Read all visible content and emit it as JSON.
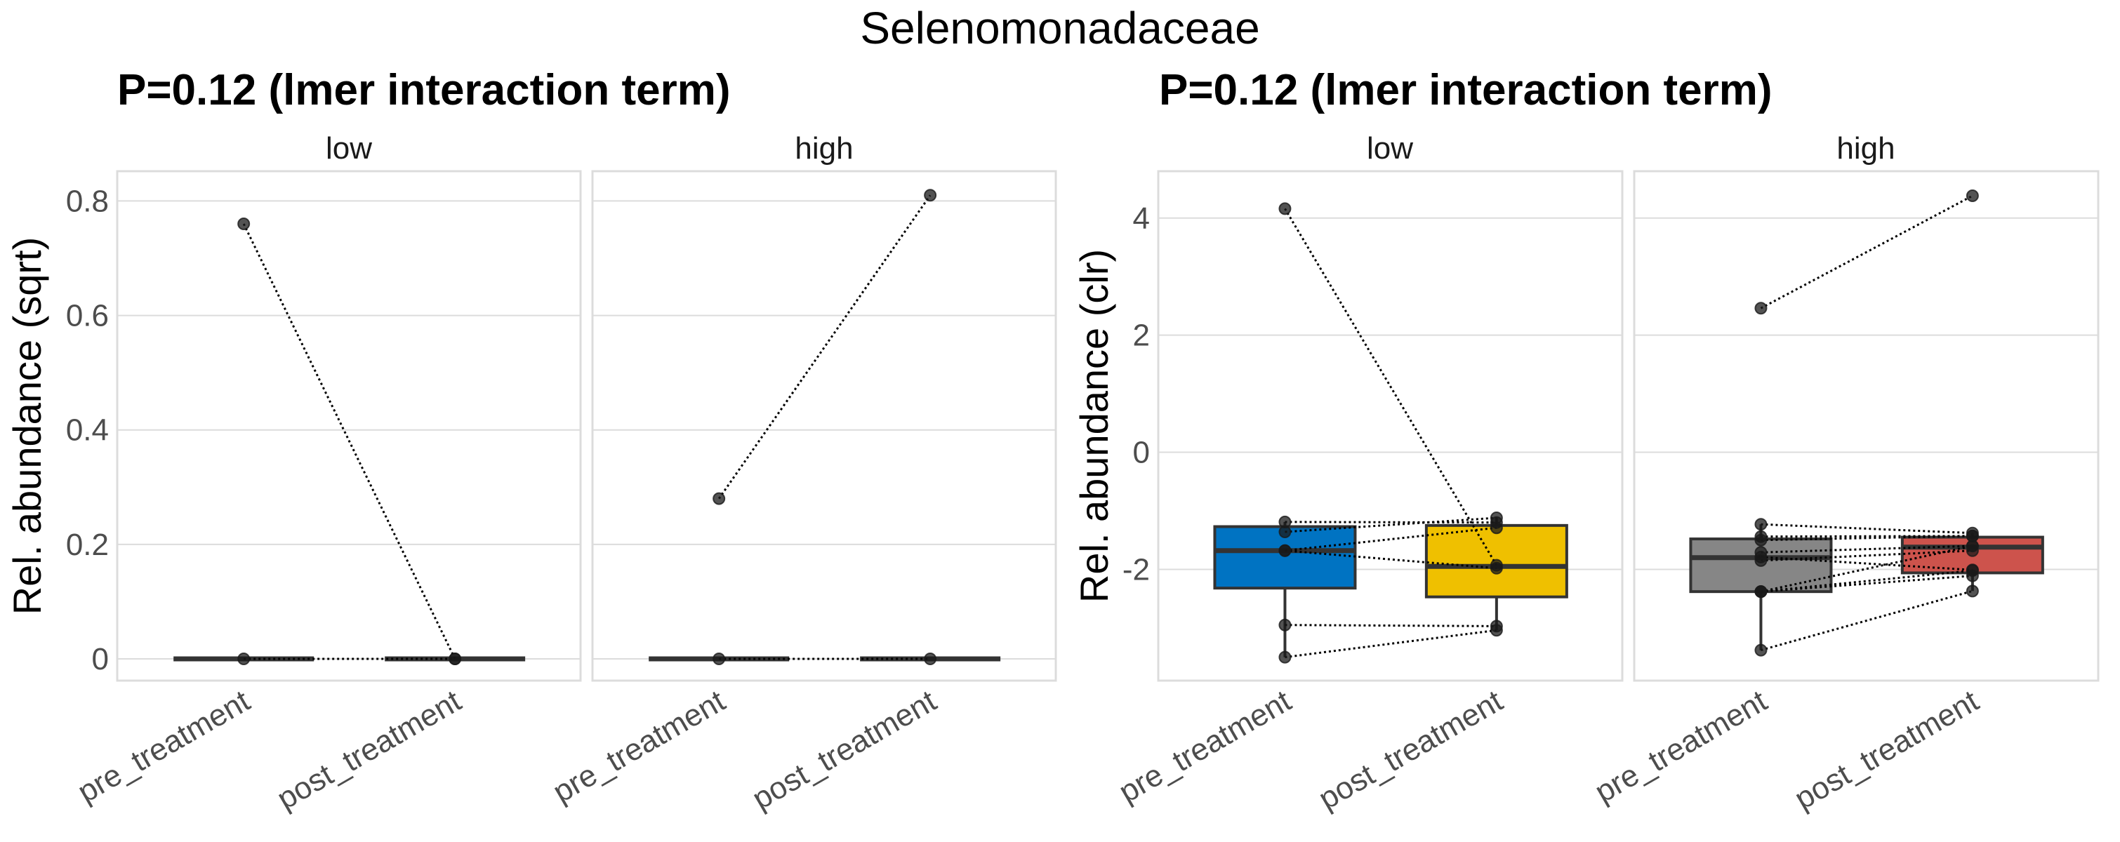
{
  "figure": {
    "title": "Selenomonadaceae"
  },
  "chart_data": [
    {
      "type": "boxplot_paired",
      "title": "P=0.12 (lmer interaction term)",
      "ylabel": "Rel. abundance (sqrt)",
      "ylim": [
        -0.038,
        0.852
      ],
      "yticks": [
        0,
        0.2,
        0.4,
        0.6,
        0.8
      ],
      "ytick_labels": [
        "0",
        "0.2",
        "0.4",
        "0.6",
        "0.8"
      ],
      "grid": true,
      "categories": [
        "pre_treatment",
        "post_treatment"
      ],
      "facets": [
        {
          "label": "low",
          "boxes": [
            {
              "category": "pre_treatment",
              "min": 0,
              "q1": 0,
              "median": 0,
              "q3": 0,
              "max": 0,
              "fill": "#3d3d3d"
            },
            {
              "category": "post_treatment",
              "min": 0,
              "q1": 0,
              "median": 0,
              "q3": 0,
              "max": 0,
              "fill": "#3d3d3d"
            }
          ],
          "pairs": [
            [
              0.76,
              0.0
            ],
            [
              0.0,
              0.0
            ]
          ]
        },
        {
          "label": "high",
          "boxes": [
            {
              "category": "pre_treatment",
              "min": 0,
              "q1": 0,
              "median": 0,
              "q3": 0,
              "max": 0,
              "fill": "#3d3d3d"
            },
            {
              "category": "post_treatment",
              "min": 0,
              "q1": 0,
              "median": 0,
              "q3": 0,
              "max": 0,
              "fill": "#3d3d3d"
            }
          ],
          "pairs": [
            [
              0.28,
              0.81
            ],
            [
              0.0,
              0.0
            ]
          ]
        }
      ]
    },
    {
      "type": "boxplot_paired",
      "title": "P=0.12 (lmer interaction term)",
      "ylabel": "Rel. abundance (clr)",
      "ylim": [
        -3.9,
        4.8
      ],
      "yticks": [
        -2,
        0,
        2,
        4
      ],
      "ytick_labels": [
        "-2",
        "0",
        "2",
        "4"
      ],
      "grid": true,
      "categories": [
        "pre_treatment",
        "post_treatment"
      ],
      "facets": [
        {
          "label": "low",
          "boxes": [
            {
              "category": "pre_treatment",
              "min": -3.5,
              "q1": -2.32,
              "median": -1.68,
              "q3": -1.27,
              "max": -1.19,
              "fill": "#0073C2"
            },
            {
              "category": "post_treatment",
              "min": -3.04,
              "q1": -2.47,
              "median": -1.95,
              "q3": -1.25,
              "max": -1.12,
              "fill": "#EFC000"
            }
          ],
          "pairs": [
            [
              4.16,
              -1.93
            ],
            [
              -1.19,
              -1.2
            ],
            [
              -1.36,
              -1.12
            ],
            [
              -1.68,
              -1.29
            ],
            [
              -1.68,
              -1.98
            ],
            [
              -2.95,
              -2.97
            ],
            [
              -3.5,
              -3.04
            ]
          ]
        },
        {
          "label": "high",
          "boxes": [
            {
              "category": "pre_treatment",
              "min": -3.38,
              "q1": -2.38,
              "median": -1.8,
              "q3": -1.48,
              "max": -1.23,
              "fill": "#868686"
            },
            {
              "category": "post_treatment",
              "min": -2.37,
              "q1": -2.06,
              "median": -1.62,
              "q3": -1.45,
              "max": -1.38,
              "fill": "#CD534C"
            }
          ],
          "pairs": [
            [
              2.46,
              4.38
            ],
            [
              -1.23,
              -1.38
            ],
            [
              -1.44,
              -1.43
            ],
            [
              -1.5,
              -1.43
            ],
            [
              -1.71,
              -1.6
            ],
            [
              -1.79,
              -2.01
            ],
            [
              -1.85,
              -1.68
            ],
            [
              -2.38,
              -1.6
            ],
            [
              -2.38,
              -2.11
            ],
            [
              -2.38,
              -2.02
            ],
            [
              -3.38,
              -2.37
            ]
          ]
        }
      ]
    }
  ]
}
